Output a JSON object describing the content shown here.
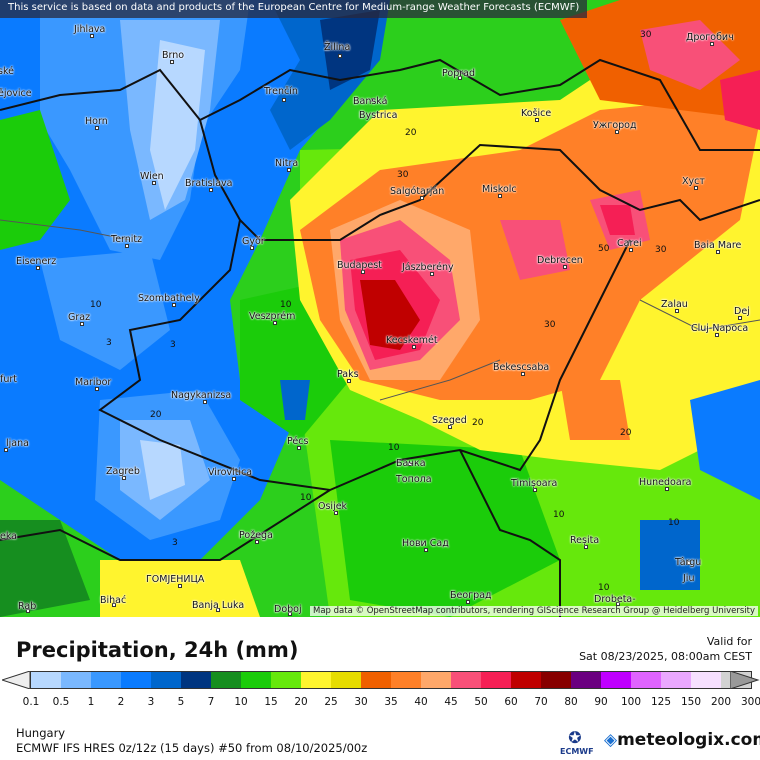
{
  "map": {
    "banner": "This service is based on data and products of the European Centre for Medium-range Weather Forecasts (ECMWF)",
    "attribution": "Map data © OpenStreetMap contributors, rendering GIScience Research Group @ Heidelberg University",
    "cities": [
      "Jihlava",
      "Brno",
      "Žilina",
      "Poprad",
      "Дрогобич",
      "ské",
      "ějovice",
      "Horn",
      "Trenčín",
      "Banská",
      "Bystrica",
      "Košice",
      "Ужгород",
      "Wien",
      "Bratislava",
      "Nitra",
      "Salgótarján",
      "Miskolc",
      "Хуст",
      "Ternitz",
      "Győr",
      "Budapest",
      "Jászberény",
      "Debrecen",
      "Carei",
      "Baia Mare",
      "Eisenerz",
      "Szombathely",
      "Veszprém",
      "Zalau",
      "Graz",
      "Kecskemét",
      "Dej",
      "Cluj-Napoca",
      "furt",
      "Maribor",
      "Paks",
      "Bekescsaba",
      "Nagykanizsa",
      "Szeged",
      "ljana",
      "Pécs",
      "Бачка",
      "Топола",
      "Zagreb",
      "Virovitica",
      "Timișoara",
      "Hunedoara",
      "Osijek",
      "Нови Сад",
      "Požega",
      "Reșita",
      "Târgu",
      "Jiu",
      "ГОМЈЕНИЦА",
      "Bihać",
      "Banja Luka",
      "Doboj",
      "Београд",
      "Drobeta-",
      "eka",
      "Rab"
    ],
    "contour_labels": [
      "30",
      "20",
      "30",
      "10",
      "3",
      "3",
      "50",
      "30",
      "30",
      "20",
      "20",
      "10",
      "10",
      "10",
      "10",
      "10",
      "20",
      "3",
      "10"
    ]
  },
  "legend": {
    "title": "Precipitation, 24h (mm)",
    "valid_label": "Valid for",
    "valid_time": "Sat 08/23/2025, 08:00am CEST",
    "ticks": [
      "0.1",
      "0.5",
      "1",
      "2",
      "3",
      "5",
      "7",
      "10",
      "15",
      "20",
      "25",
      "30",
      "35",
      "40",
      "45",
      "50",
      "60",
      "70",
      "80",
      "90",
      "100",
      "125",
      "150",
      "200",
      "300"
    ],
    "colors": [
      "#b7d8ff",
      "#7ab8ff",
      "#3a98ff",
      "#0a7bff",
      "#0066cc",
      "#003580",
      "#168e1f",
      "#1bcc0a",
      "#66e80c",
      "#fff42e",
      "#e6dc00",
      "#f06000",
      "#ff8028",
      "#ffa86a",
      "#f85078",
      "#f51f55",
      "#c00000",
      "#870000",
      "#6b0080",
      "#c000ff",
      "#e064ff",
      "#eaa8ff",
      "#f6e0ff",
      "#d2d2d2"
    ],
    "under_color": "#eeeeee",
    "over_color": "#999999"
  },
  "footer": {
    "region": "Hungary",
    "model": "ECMWF IFS HRES 0z/12z (15 days) #50 from  08/10/2025/00z",
    "ecmwf_logo": "ECMWF",
    "brand": "meteologix.com"
  }
}
